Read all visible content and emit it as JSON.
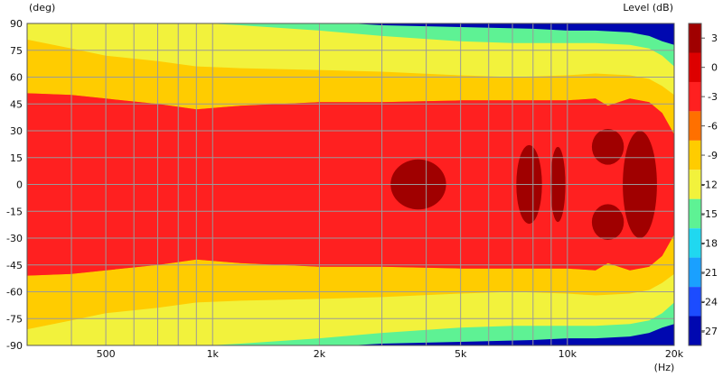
{
  "chart_data": {
    "type": "heatmap",
    "subtype": "directivity-contour",
    "y_unit_label": "(deg)",
    "colorbar_title": "Level  (dB)",
    "x_unit_label": "(Hz)",
    "xscale": "log",
    "xlim": [
      300,
      20000
    ],
    "ylim": [
      -90,
      90
    ],
    "grid": true,
    "x_ticks": [
      {
        "value": 500,
        "label": "500"
      },
      {
        "value": 1000,
        "label": "1k"
      },
      {
        "value": 2000,
        "label": "2k"
      },
      {
        "value": 5000,
        "label": "5k"
      },
      {
        "value": 10000,
        "label": "10k"
      },
      {
        "value": 20000,
        "label": "20k"
      }
    ],
    "x_minor_ticks": [
      300,
      400,
      600,
      700,
      800,
      900,
      3000,
      4000,
      6000,
      7000,
      8000,
      9000
    ],
    "y_ticks": [
      90,
      75,
      60,
      45,
      30,
      15,
      0,
      -15,
      -30,
      -45,
      -60,
      -75,
      -90
    ],
    "y_tick_labels": [
      "90",
      "75",
      "60",
      "45",
      "30",
      "15",
      "0",
      "-15",
      "-30",
      "-45",
      "-60",
      "-75",
      "-90"
    ],
    "colorbar": {
      "range": [
        -28.5,
        4.5
      ],
      "labels": [
        "3",
        "0",
        "-3",
        "-6",
        "-9",
        "-12",
        "-15",
        "-18",
        "-21",
        "-24",
        "-27"
      ],
      "bands": [
        {
          "lo": 1.5,
          "hi": 4.5,
          "color": "#a00000"
        },
        {
          "lo": -1.5,
          "hi": 1.5,
          "color": "#dd0000"
        },
        {
          "lo": -4.5,
          "hi": -1.5,
          "color": "#ff2020"
        },
        {
          "lo": -7.5,
          "hi": -4.5,
          "color": "#ff7000"
        },
        {
          "lo": -10.5,
          "hi": -7.5,
          "color": "#ffcc00"
        },
        {
          "lo": -13.5,
          "hi": -10.5,
          "color": "#f2f23c"
        },
        {
          "lo": -16.5,
          "hi": -13.5,
          "color": "#5ef294"
        },
        {
          "lo": -19.5,
          "hi": -16.5,
          "color": "#20d8f0"
        },
        {
          "lo": -22.5,
          "hi": -19.5,
          "color": "#1aa0ff"
        },
        {
          "lo": -25.5,
          "hi": -22.5,
          "color": "#1c4cff"
        },
        {
          "lo": -28.5,
          "hi": -25.5,
          "color": "#0008b0"
        }
      ]
    },
    "contours": [
      {
        "level": -12,
        "color": "#5ef294",
        "upper": [
          [
            300,
            92
          ],
          [
            500,
            92
          ],
          [
            1000,
            92
          ],
          [
            2000,
            91
          ],
          [
            3000,
            89
          ],
          [
            5000,
            88
          ],
          [
            8000,
            87
          ],
          [
            10000,
            86
          ],
          [
            12000,
            86
          ],
          [
            15000,
            85
          ],
          [
            17000,
            83
          ],
          [
            18500,
            80
          ],
          [
            20000,
            78
          ]
        ],
        "lower": [
          [
            300,
            -92
          ],
          [
            500,
            -92
          ],
          [
            1000,
            -92
          ],
          [
            2000,
            -91
          ],
          [
            3000,
            -89
          ],
          [
            5000,
            -88
          ],
          [
            8000,
            -87
          ],
          [
            10000,
            -86
          ],
          [
            12000,
            -86
          ],
          [
            15000,
            -85
          ],
          [
            17000,
            -83
          ],
          [
            18500,
            -80
          ],
          [
            20000,
            -78
          ]
        ]
      },
      {
        "level": -9,
        "color": "#f2f23c",
        "upper": [
          [
            300,
            92
          ],
          [
            500,
            92
          ],
          [
            800,
            91
          ],
          [
            1200,
            89
          ],
          [
            2000,
            86
          ],
          [
            3000,
            83
          ],
          [
            5000,
            80
          ],
          [
            7000,
            79
          ],
          [
            10000,
            79
          ],
          [
            12000,
            79
          ],
          [
            15000,
            78
          ],
          [
            17000,
            76
          ],
          [
            18500,
            72
          ],
          [
            20000,
            66
          ]
        ],
        "lower": [
          [
            300,
            -92
          ],
          [
            500,
            -92
          ],
          [
            800,
            -91
          ],
          [
            1200,
            -89
          ],
          [
            2000,
            -86
          ],
          [
            3000,
            -83
          ],
          [
            5000,
            -80
          ],
          [
            7000,
            -79
          ],
          [
            10000,
            -79
          ],
          [
            12000,
            -79
          ],
          [
            15000,
            -78
          ],
          [
            17000,
            -76
          ],
          [
            18500,
            -72
          ],
          [
            20000,
            -66
          ]
        ]
      },
      {
        "level": -6,
        "color": "#ffcc00",
        "upper": [
          [
            300,
            81
          ],
          [
            400,
            76
          ],
          [
            500,
            72
          ],
          [
            700,
            69
          ],
          [
            900,
            66
          ],
          [
            1200,
            65
          ],
          [
            2000,
            64
          ],
          [
            3000,
            63
          ],
          [
            5000,
            61
          ],
          [
            7000,
            60
          ],
          [
            10000,
            61
          ],
          [
            12000,
            62
          ],
          [
            15000,
            61
          ],
          [
            17000,
            59
          ],
          [
            18500,
            55
          ],
          [
            20000,
            50
          ]
        ],
        "lower": [
          [
            300,
            -81
          ],
          [
            400,
            -76
          ],
          [
            500,
            -72
          ],
          [
            700,
            -69
          ],
          [
            900,
            -66
          ],
          [
            1200,
            -65
          ],
          [
            2000,
            -64
          ],
          [
            3000,
            -63
          ],
          [
            5000,
            -61
          ],
          [
            7000,
            -60
          ],
          [
            10000,
            -61
          ],
          [
            12000,
            -62
          ],
          [
            15000,
            -61
          ],
          [
            17000,
            -59
          ],
          [
            18500,
            -55
          ],
          [
            20000,
            -50
          ]
        ]
      },
      {
        "level": -3,
        "color": "#ff7000",
        "upper": [
          [
            300,
            51
          ],
          [
            400,
            50
          ],
          [
            500,
            48
          ],
          [
            700,
            45
          ],
          [
            900,
            42
          ],
          [
            1200,
            44
          ],
          [
            2000,
            46
          ],
          [
            3000,
            46
          ],
          [
            5000,
            47
          ],
          [
            7000,
            47
          ],
          [
            10000,
            47
          ],
          [
            12000,
            48
          ],
          [
            13000,
            44
          ],
          [
            15000,
            48
          ],
          [
            17000,
            46
          ],
          [
            18500,
            40
          ],
          [
            20000,
            28
          ]
        ],
        "lower": [
          [
            300,
            -51
          ],
          [
            400,
            -50
          ],
          [
            500,
            -48
          ],
          [
            700,
            -45
          ],
          [
            900,
            -42
          ],
          [
            1200,
            -44
          ],
          [
            2000,
            -46
          ],
          [
            3000,
            -46
          ],
          [
            5000,
            -47
          ],
          [
            7000,
            -47
          ],
          [
            10000,
            -47
          ],
          [
            12000,
            -48
          ],
          [
            13000,
            -44
          ],
          [
            15000,
            -48
          ],
          [
            17000,
            -46
          ],
          [
            18500,
            -40
          ],
          [
            20000,
            -28
          ]
        ]
      }
    ],
    "peaks": [
      {
        "level": 3,
        "color": "#a00000",
        "f_center": 3800,
        "deg_center": 0,
        "f_half_oct": 0.26,
        "deg_half": 14
      },
      {
        "level": 3,
        "color": "#a00000",
        "f_center": 7800,
        "deg_center": 0,
        "f_half_oct": 0.12,
        "deg_half": 22
      },
      {
        "level": 3,
        "color": "#a00000",
        "f_center": 9400,
        "deg_center": 0,
        "f_half_oct": 0.07,
        "deg_half": 21
      },
      {
        "level": 3,
        "color": "#a00000",
        "f_center": 13000,
        "deg_center": 21,
        "f_half_oct": 0.15,
        "deg_half": 10
      },
      {
        "level": 3,
        "color": "#a00000",
        "f_center": 13000,
        "deg_center": -21,
        "f_half_oct": 0.15,
        "deg_half": 10
      },
      {
        "level": 3,
        "color": "#a00000",
        "f_center": 16000,
        "deg_center": 0,
        "f_half_oct": 0.16,
        "deg_half": 30
      }
    ],
    "background_color": "#ff2020"
  }
}
